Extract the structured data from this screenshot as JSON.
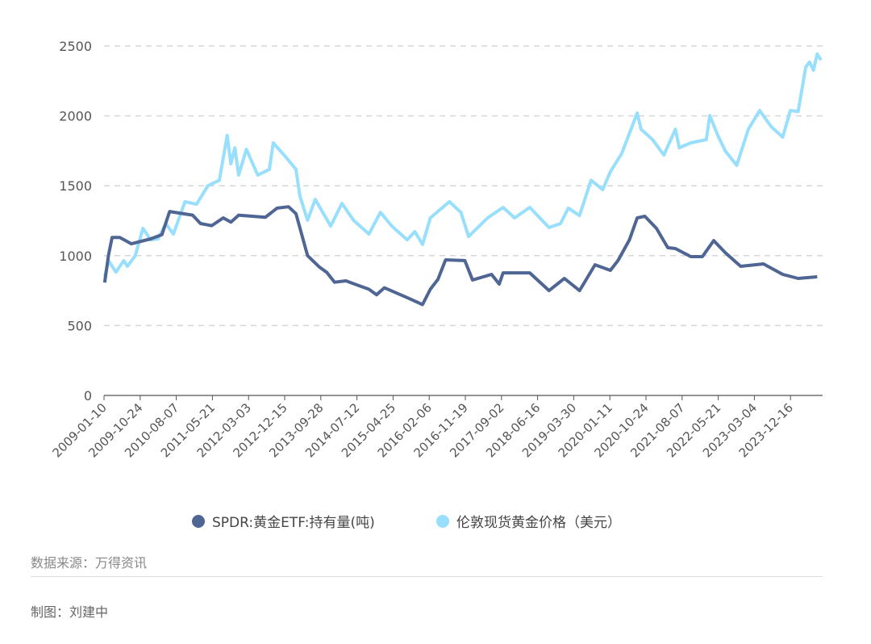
{
  "chart_data": {
    "type": "line",
    "title": "",
    "xlabel": "",
    "ylabel": "",
    "ylim": [
      0,
      2500
    ],
    "yticks": [
      0,
      500,
      1000,
      1500,
      2000,
      2500
    ],
    "xlim": [
      "2009-01-10",
      "2024-08-27"
    ],
    "xticks": [
      "2009-01-10",
      "2009-10-24",
      "2010-08-07",
      "2011-05-21",
      "2012-03-03",
      "2012-12-15",
      "2013-09-28",
      "2014-07-12",
      "2015-04-25",
      "2016-02-06",
      "2016-11-19",
      "2017-09-02",
      "2018-06-16",
      "2019-03-30",
      "2020-01-11",
      "2020-10-24",
      "2021-08-07",
      "2022-05-21",
      "2023-03-04",
      "2023-12-16"
    ],
    "grid": "horizontal dashed",
    "legend_position": "bottom",
    "series": [
      {
        "name": "SPDR:黄金ETF:持有量(吨)",
        "color": "#4f6594",
        "points": [
          [
            "2009-01",
            808
          ],
          [
            "2009-02",
            1005
          ],
          [
            "2009-03",
            1130
          ],
          [
            "2009-05",
            1130
          ],
          [
            "2009-08",
            1085
          ],
          [
            "2010-01",
            1120
          ],
          [
            "2010-04",
            1150
          ],
          [
            "2010-06",
            1316
          ],
          [
            "2010-12",
            1290
          ],
          [
            "2011-02",
            1230
          ],
          [
            "2011-05",
            1215
          ],
          [
            "2011-08",
            1270
          ],
          [
            "2011-10",
            1240
          ],
          [
            "2011-12",
            1290
          ],
          [
            "2012-07",
            1275
          ],
          [
            "2012-10",
            1340
          ],
          [
            "2013-01",
            1350
          ],
          [
            "2013-03",
            1300
          ],
          [
            "2013-05",
            1100
          ],
          [
            "2013-06",
            1000
          ],
          [
            "2013-09",
            920
          ],
          [
            "2013-11",
            880
          ],
          [
            "2014-01",
            810
          ],
          [
            "2014-04",
            820
          ],
          [
            "2014-07",
            790
          ],
          [
            "2014-10",
            760
          ],
          [
            "2014-12",
            720
          ],
          [
            "2015-02",
            770
          ],
          [
            "2015-08",
            700
          ],
          [
            "2015-12",
            650
          ],
          [
            "2016-02",
            760
          ],
          [
            "2016-04",
            830
          ],
          [
            "2016-06",
            970
          ],
          [
            "2016-11",
            965
          ],
          [
            "2017-01",
            826
          ],
          [
            "2017-06",
            866
          ],
          [
            "2017-08",
            797
          ],
          [
            "2017-09",
            877
          ],
          [
            "2018-04",
            877
          ],
          [
            "2018-09",
            750
          ],
          [
            "2019-01",
            837
          ],
          [
            "2019-05",
            750
          ],
          [
            "2019-09",
            935
          ],
          [
            "2020-01",
            895
          ],
          [
            "2020-03",
            964
          ],
          [
            "2020-06",
            1114
          ],
          [
            "2020-08",
            1270
          ],
          [
            "2020-10",
            1282
          ],
          [
            "2021-01",
            1195
          ],
          [
            "2021-04",
            1057
          ],
          [
            "2021-06",
            1051
          ],
          [
            "2021-10",
            993
          ],
          [
            "2022-01",
            993
          ],
          [
            "2022-04",
            1108
          ],
          [
            "2022-07",
            1022
          ],
          [
            "2022-11",
            924
          ],
          [
            "2023-05",
            941
          ],
          [
            "2023-10",
            866
          ],
          [
            "2024-02",
            837
          ],
          [
            "2024-07",
            849
          ]
        ]
      },
      {
        "name": "伦敦现货黄金价格（美元）",
        "color": "#97dffc",
        "points": [
          [
            "2009-01",
            850
          ],
          [
            "2009-02",
            964
          ],
          [
            "2009-04",
            883
          ],
          [
            "2009-06",
            964
          ],
          [
            "2009-07",
            924
          ],
          [
            "2009-09",
            1000
          ],
          [
            "2009-11",
            1195
          ],
          [
            "2010-01",
            1114
          ],
          [
            "2010-03",
            1120
          ],
          [
            "2010-05",
            1230
          ],
          [
            "2010-07",
            1155
          ],
          [
            "2010-10",
            1386
          ],
          [
            "2011-01",
            1368
          ],
          [
            "2011-04",
            1500
          ],
          [
            "2011-07",
            1540
          ],
          [
            "2011-09",
            1860
          ],
          [
            "2011-10",
            1657
          ],
          [
            "2011-11",
            1772
          ],
          [
            "2011-12",
            1576
          ],
          [
            "2012-02",
            1761
          ],
          [
            "2012-05",
            1576
          ],
          [
            "2012-08",
            1617
          ],
          [
            "2012-09",
            1807
          ],
          [
            "2012-12",
            1715
          ],
          [
            "2013-03",
            1617
          ],
          [
            "2013-04",
            1426
          ],
          [
            "2013-06",
            1253
          ],
          [
            "2013-08",
            1403
          ],
          [
            "2013-12",
            1212
          ],
          [
            "2014-03",
            1374
          ],
          [
            "2014-06",
            1253
          ],
          [
            "2014-10",
            1155
          ],
          [
            "2015-01",
            1310
          ],
          [
            "2015-04",
            1212
          ],
          [
            "2015-08",
            1114
          ],
          [
            "2015-10",
            1172
          ],
          [
            "2015-12",
            1080
          ],
          [
            "2016-02",
            1270
          ],
          [
            "2016-07",
            1386
          ],
          [
            "2016-10",
            1310
          ],
          [
            "2016-12",
            1137
          ],
          [
            "2017-05",
            1270
          ],
          [
            "2017-09",
            1345
          ],
          [
            "2017-12",
            1270
          ],
          [
            "2018-04",
            1345
          ],
          [
            "2018-09",
            1201
          ],
          [
            "2018-12",
            1230
          ],
          [
            "2019-02",
            1340
          ],
          [
            "2019-05",
            1287
          ],
          [
            "2019-08",
            1540
          ],
          [
            "2019-11",
            1472
          ],
          [
            "2020-01",
            1600
          ],
          [
            "2020-04",
            1732
          ],
          [
            "2020-08",
            2020
          ],
          [
            "2020-09",
            1905
          ],
          [
            "2020-12",
            1830
          ],
          [
            "2021-03",
            1720
          ],
          [
            "2021-06",
            1905
          ],
          [
            "2021-07",
            1772
          ],
          [
            "2021-10",
            1807
          ],
          [
            "2022-02",
            1830
          ],
          [
            "2022-03",
            2003
          ],
          [
            "2022-05",
            1865
          ],
          [
            "2022-07",
            1750
          ],
          [
            "2022-10",
            1646
          ],
          [
            "2023-01",
            1905
          ],
          [
            "2023-04",
            2038
          ],
          [
            "2023-07",
            1923
          ],
          [
            "2023-10",
            1848
          ],
          [
            "2023-12",
            2038
          ],
          [
            "2024-02",
            2032
          ],
          [
            "2024-04",
            2350
          ],
          [
            "2024-05",
            2385
          ],
          [
            "2024-06",
            2327
          ],
          [
            "2024-07",
            2442
          ],
          [
            "2024-08",
            2400
          ]
        ]
      }
    ]
  },
  "legend": {
    "items": [
      {
        "label": "SPDR:黄金ETF:持有量(吨)",
        "color": "#4f6594"
      },
      {
        "label": "伦敦现货黄金价格（美元）",
        "color": "#97dffc"
      }
    ]
  },
  "footer": {
    "source": "数据来源：万得资讯",
    "author": "制图：刘建中"
  }
}
